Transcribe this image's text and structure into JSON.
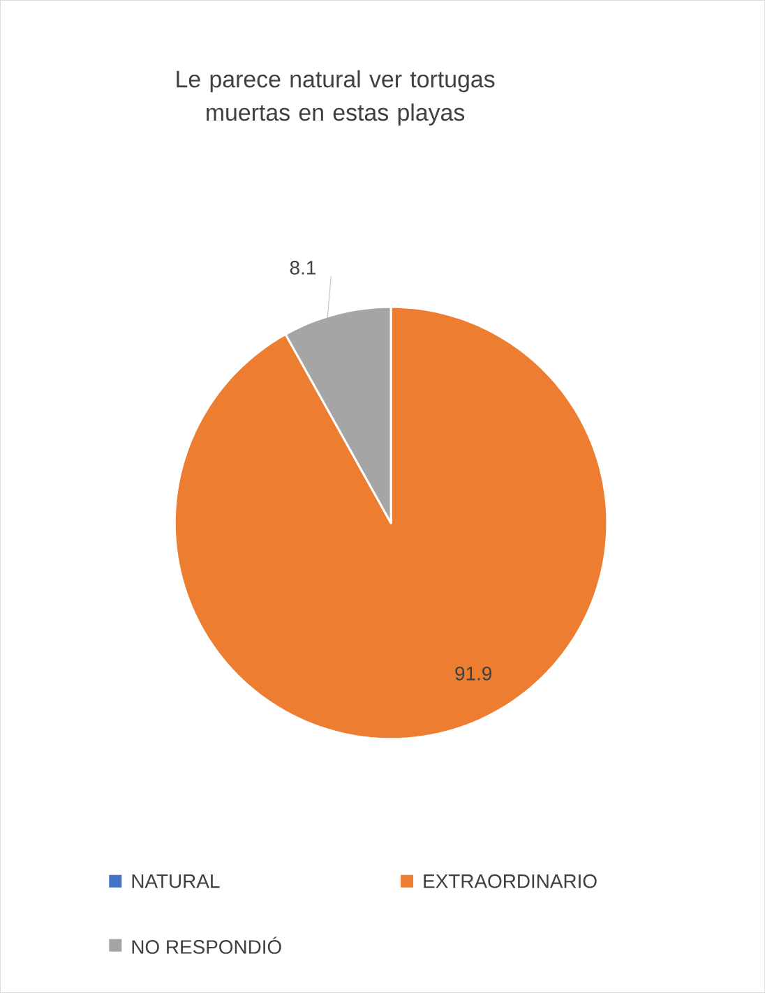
{
  "chart_data": {
    "type": "pie",
    "title": "Le parece natural ver tortugas muertas en estas playas",
    "categories": [
      "NATURAL",
      "EXTRAORDINARIO",
      "NO RESPONDIÓ"
    ],
    "values": [
      0,
      91.9,
      8.1
    ],
    "colors": [
      "#4472c4",
      "#ed7d31",
      "#a5a5a5"
    ],
    "value_labels": [
      null,
      "91.9",
      "8.1"
    ],
    "legend": "bottom"
  }
}
